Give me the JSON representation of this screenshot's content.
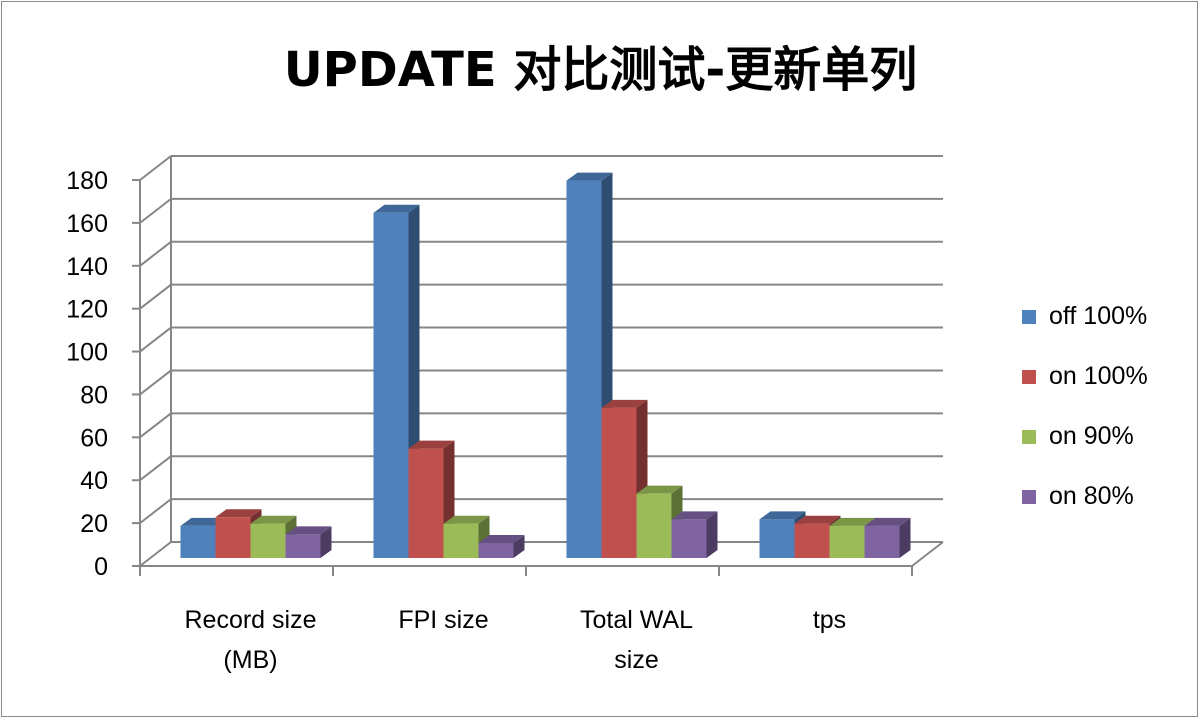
{
  "chart_data": {
    "type": "bar",
    "title": "UPDATE 对比测试-更新单列",
    "categories": [
      [
        "Record size",
        "(MB)"
      ],
      [
        "FPI size"
      ],
      [
        "Total WAL",
        "size"
      ],
      [
        "tps"
      ]
    ],
    "ylim": [
      0,
      180
    ],
    "yticks": [
      0,
      20,
      40,
      60,
      80,
      100,
      120,
      140,
      160,
      180
    ],
    "grid": true,
    "legend_position": "right",
    "series": [
      {
        "name": "off 100%",
        "color": "#4f81bd",
        "values": [
          15,
          161,
          176,
          18
        ]
      },
      {
        "name": "on 100%",
        "color": "#c0504d",
        "values": [
          19,
          51,
          70,
          16
        ]
      },
      {
        "name": "on 90%",
        "color": "#9bbb59",
        "values": [
          16,
          16,
          30,
          15
        ]
      },
      {
        "name": "on 80%",
        "color": "#8064a2",
        "values": [
          11,
          7,
          18,
          15
        ]
      }
    ]
  }
}
